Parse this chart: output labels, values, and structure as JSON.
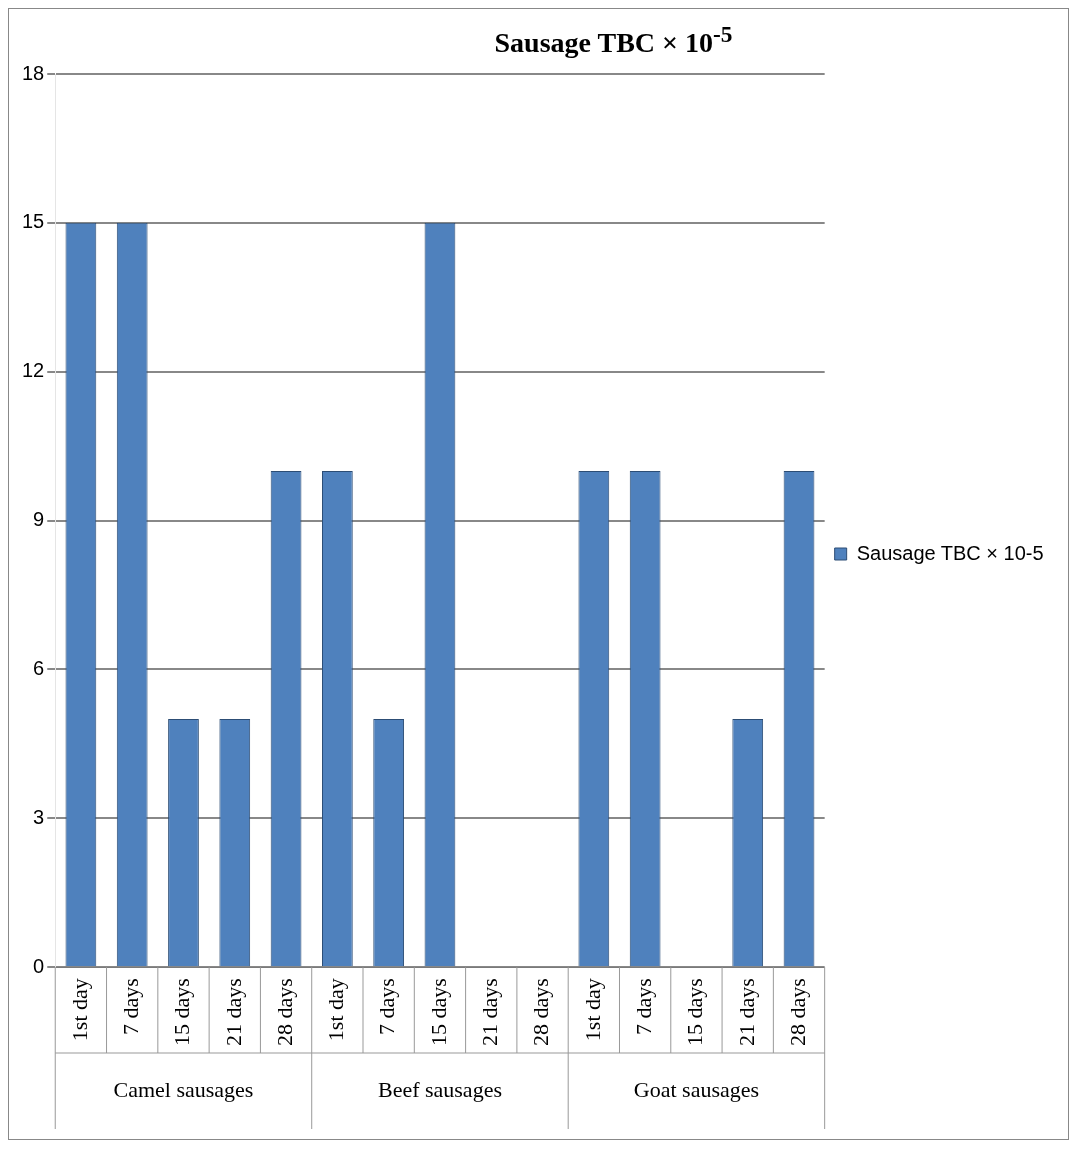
{
  "chart_data": {
    "type": "bar",
    "title": "Sausage TBC × 10$^{-5}$",
    "categories": [
      "1st day",
      "7 days",
      "15 days",
      "21 days",
      "28 days",
      "1st day",
      "7 days",
      "15 days",
      "21 days",
      "28 days",
      "1st day",
      "7 days",
      "15 days",
      "21 days",
      "28 days"
    ],
    "series": [
      {
        "name": "Sausage TBC × 10-5",
        "color": "#4f81bd",
        "values": [
          15,
          15,
          5,
          5,
          10,
          10,
          5,
          15,
          0,
          0,
          10,
          10,
          0,
          5,
          10
        ]
      }
    ],
    "annotations": [
      "Camel sausages",
      "Beef sausages",
      "Goat sausages"
    ],
    "ylim": [
      0,
      18
    ],
    "yticks": [
      0,
      3,
      6,
      9,
      12,
      15,
      18
    ],
    "grid": "y",
    "legend": "right"
  }
}
